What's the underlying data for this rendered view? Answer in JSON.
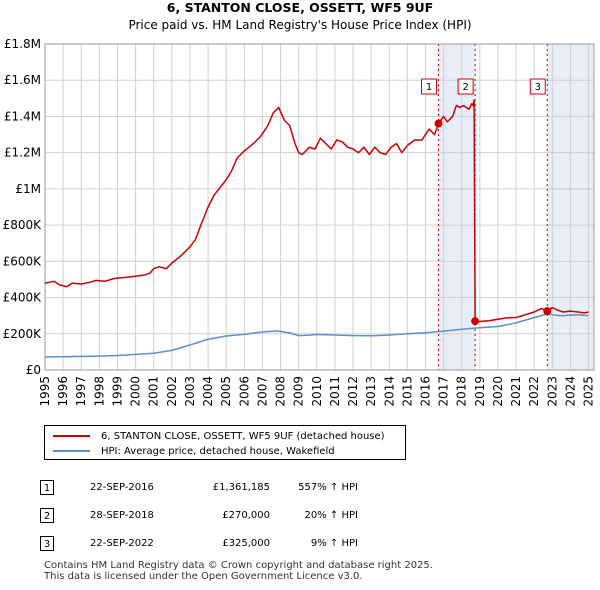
{
  "chart_data": {
    "type": "line",
    "title": "6, STANTON CLOSE, OSSETT, WF5 9UF",
    "subtitle": "Price paid vs. HM Land Registry's House Price Index (HPI)",
    "xlim": [
      1995,
      2025.3
    ],
    "ylim": [
      0,
      1800000
    ],
    "y_ticks": [
      0,
      200000,
      400000,
      600000,
      800000,
      1000000,
      1200000,
      1400000,
      1600000,
      1800000
    ],
    "y_tick_labels": [
      "£0",
      "£200K",
      "£400K",
      "£600K",
      "£800K",
      "£1M",
      "£1.2M",
      "£1.4M",
      "£1.6M",
      "£1.8M"
    ],
    "x_ticks": [
      1995,
      1996,
      1997,
      1998,
      1999,
      2000,
      2001,
      2002,
      2003,
      2004,
      2005,
      2006,
      2007,
      2008,
      2009,
      2010,
      2011,
      2012,
      2013,
      2014,
      2015,
      2016,
      2017,
      2018,
      2019,
      2020,
      2021,
      2022,
      2023,
      2024,
      2025
    ],
    "grid": true,
    "shaded_spans": [
      [
        2016.72,
        2018.74
      ],
      [
        2022.72,
        2025.3
      ]
    ],
    "series": [
      {
        "name": "6, STANTON CLOSE, OSSETT, WF5 9UF (detached house)",
        "color": "#cc0000",
        "x": [
          1995.0,
          1995.5,
          1995.8,
          1996.2,
          1996.5,
          1997.0,
          1997.5,
          1997.8,
          1998.3,
          1998.8,
          1999.3,
          1999.8,
          2000.2,
          2000.5,
          2000.8,
          2001.0,
          2001.3,
          2001.7,
          2002.0,
          2002.5,
          2003.0,
          2003.3,
          2003.6,
          2004.0,
          2004.3,
          2004.6,
          2005.0,
          2005.3,
          2005.6,
          2006.0,
          2006.5,
          2006.9,
          2007.3,
          2007.6,
          2007.9,
          2008.2,
          2008.5,
          2008.8,
          2009.0,
          2009.2,
          2009.6,
          2009.9,
          2010.2,
          2010.5,
          2010.8,
          2011.1,
          2011.4,
          2011.7,
          2012.0,
          2012.3,
          2012.6,
          2012.9,
          2013.2,
          2013.5,
          2013.8,
          2014.1,
          2014.4,
          2014.7,
          2015.0,
          2015.4,
          2015.8,
          2016.2,
          2016.5,
          2016.72,
          2017.0,
          2017.2,
          2017.5,
          2017.7,
          2017.9,
          2018.1,
          2018.4,
          2018.55,
          2018.62,
          2018.68,
          2018.74,
          2019.0,
          2019.5,
          2020.0,
          2020.5,
          2021.0,
          2021.5,
          2022.0,
          2022.4,
          2022.72,
          2023.0,
          2023.3,
          2023.6,
          2024.0,
          2024.4,
          2024.8,
          2025.0
        ],
        "values": [
          480000,
          490000,
          470000,
          460000,
          480000,
          475000,
          485000,
          495000,
          490000,
          505000,
          510000,
          515000,
          520000,
          525000,
          535000,
          560000,
          570000,
          560000,
          590000,
          630000,
          680000,
          720000,
          800000,
          900000,
          960000,
          1000000,
          1050000,
          1100000,
          1170000,
          1210000,
          1250000,
          1290000,
          1350000,
          1420000,
          1450000,
          1380000,
          1350000,
          1250000,
          1200000,
          1190000,
          1230000,
          1220000,
          1280000,
          1250000,
          1220000,
          1270000,
          1260000,
          1230000,
          1220000,
          1200000,
          1230000,
          1190000,
          1230000,
          1200000,
          1190000,
          1230000,
          1250000,
          1200000,
          1240000,
          1270000,
          1270000,
          1330000,
          1300000,
          1361185,
          1400000,
          1370000,
          1400000,
          1460000,
          1450000,
          1460000,
          1440000,
          1470000,
          1460000,
          1490000,
          270000,
          268000,
          272000,
          280000,
          288000,
          290000,
          305000,
          320000,
          340000,
          325000,
          345000,
          330000,
          320000,
          325000,
          320000,
          315000,
          320000
        ]
      },
      {
        "name": "HPI: Average price, detached house, Wakefield",
        "color": "#5b8fd0",
        "x": [
          1995.0,
          1996.0,
          1997.0,
          1998.0,
          1999.0,
          2000.0,
          2001.0,
          2002.0,
          2003.0,
          2004.0,
          2005.0,
          2006.0,
          2007.0,
          2007.8,
          2008.5,
          2009.0,
          2009.5,
          2010.0,
          2011.0,
          2012.0,
          2013.0,
          2014.0,
          2015.0,
          2016.0,
          2017.0,
          2018.0,
          2019.0,
          2020.0,
          2021.0,
          2022.0,
          2022.72,
          2023.0,
          2023.5,
          2024.0,
          2024.5,
          2025.0
        ],
        "values": [
          72000,
          73000,
          75000,
          77000,
          80000,
          86000,
          92000,
          108000,
          138000,
          170000,
          188000,
          197000,
          210000,
          216000,
          205000,
          190000,
          192000,
          196000,
          193000,
          190000,
          189000,
          193000,
          200000,
          206000,
          215000,
          225000,
          233000,
          240000,
          260000,
          290000,
          310000,
          305000,
          300000,
          303000,
          305000,
          300000
        ]
      }
    ],
    "sales": [
      {
        "label": "1",
        "x": 2016.72,
        "value": 1361185
      },
      {
        "label": "2",
        "x": 2018.74,
        "value": 270000
      },
      {
        "label": "3",
        "x": 2022.72,
        "value": 325000
      }
    ]
  },
  "legend": {
    "property": "6, STANTON CLOSE, OSSETT, WF5 9UF (detached house)",
    "hpi": "HPI: Average price, detached house, Wakefield"
  },
  "transactions": [
    {
      "num": "1",
      "date": "22-SEP-2016",
      "price": "£1,361,185",
      "hpi": "557% ↑ HPI"
    },
    {
      "num": "2",
      "date": "28-SEP-2018",
      "price": "£270,000",
      "hpi": "20% ↑ HPI"
    },
    {
      "num": "3",
      "date": "22-SEP-2022",
      "price": "£325,000",
      "hpi": "9% ↑ HPI"
    }
  ],
  "footer": {
    "line1": "Contains HM Land Registry data © Crown copyright and database right 2025.",
    "line2": "This data is licensed under the Open Government Licence v3.0."
  }
}
